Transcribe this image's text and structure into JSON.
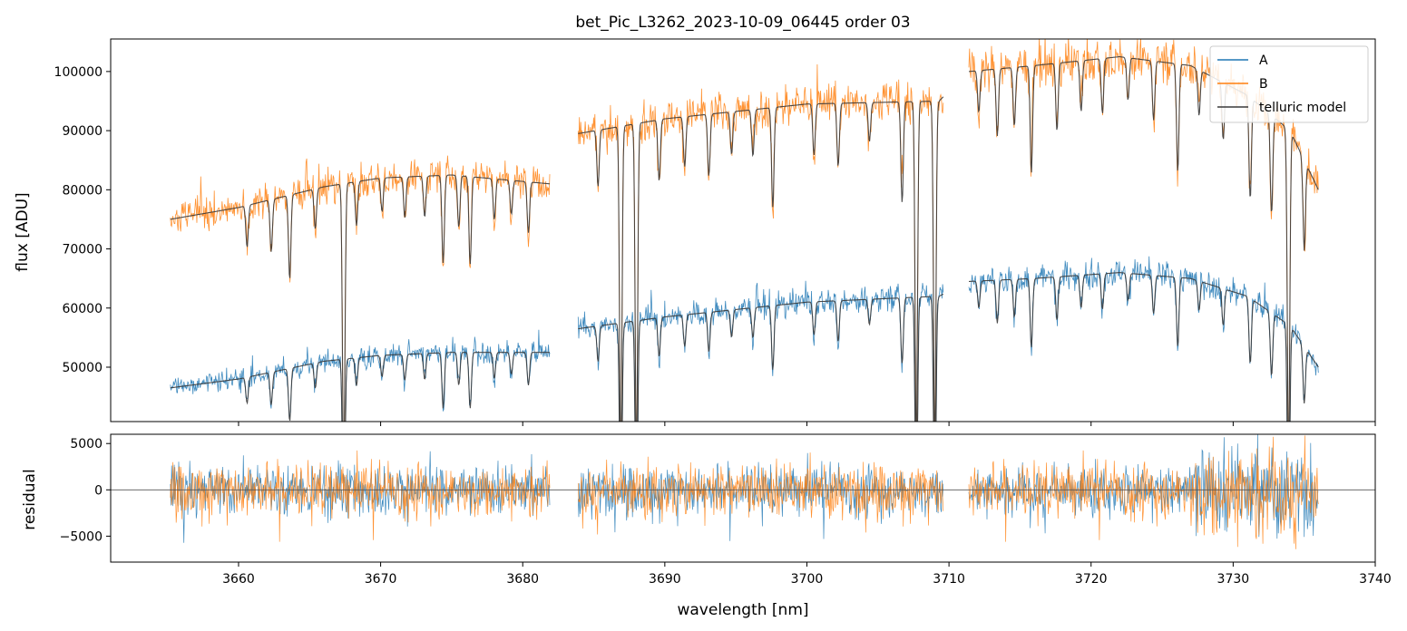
{
  "chart_data": [
    {
      "type": "line",
      "panel": "top",
      "title": "bet_Pic_L3262_2023-10-09_06445  order 03",
      "xlabel": "",
      "ylabel": "flux [ADU]",
      "xlim": [
        3651,
        3740
      ],
      "ylim": [
        40800,
        105500
      ],
      "yticks": [
        50000,
        60000,
        70000,
        80000,
        90000,
        100000
      ],
      "legend": {
        "placement": "top-right",
        "entries": [
          "A",
          "B",
          "telluric model"
        ]
      },
      "segments": [
        [
          3655.2,
          3681.9
        ],
        [
          3683.9,
          3709.6
        ],
        [
          3711.4,
          3736.0
        ]
      ],
      "series": [
        {
          "name": "A",
          "color": "#1f77b4",
          "continuum_x": [
            3655.2,
            3660,
            3666,
            3670,
            3675,
            3681.9,
            3683.9,
            3690,
            3700,
            3709.3,
            3711.4,
            3716,
            3722,
            3727,
            3731,
            3734,
            3736
          ],
          "continuum_y": [
            46500,
            48000,
            51000,
            52000,
            52500,
            52500,
            56500,
            58500,
            61000,
            62000,
            64500,
            65000,
            66000,
            65000,
            62000,
            57000,
            50000
          ]
        },
        {
          "name": "B",
          "color": "#ff7f0e",
          "continuum_x": [
            3655.2,
            3660,
            3666,
            3670,
            3675,
            3681.9,
            3683.9,
            3690,
            3700,
            3709.3,
            3711.4,
            3716,
            3722,
            3727,
            3731,
            3734,
            3736
          ],
          "continuum_y": [
            75000,
            77000,
            80500,
            82000,
            82500,
            81000,
            89500,
            92000,
            94500,
            95000,
            100000,
            101000,
            102500,
            101000,
            96000,
            90000,
            80000
          ]
        },
        {
          "name": "telluric model",
          "color": "#3a3a3a",
          "absorption_lines_nm": [
            3660.6,
            3662.3,
            3663.6,
            3665.4,
            3667.4,
            3668.3,
            3670.1,
            3671.7,
            3673.1,
            3674.4,
            3675.5,
            3676.3,
            3678.0,
            3679.2,
            3680.4,
            3685.3,
            3686.9,
            3688.0,
            3689.6,
            3691.4,
            3693.1,
            3694.7,
            3696.2,
            3697.6,
            3700.5,
            3702.2,
            3704.4,
            3706.7,
            3707.7,
            3709.0,
            3712.1,
            3713.4,
            3714.6,
            3715.8,
            3717.6,
            3719.3,
            3720.8,
            3722.6,
            3724.4,
            3726.1,
            3727.6,
            3729.3,
            3731.2,
            3732.7,
            3733.9,
            3735.0
          ]
        }
      ]
    },
    {
      "type": "line",
      "panel": "bottom",
      "xlabel": "wavelength [nm]",
      "ylabel": "residual",
      "xlim": [
        3651,
        3740
      ],
      "ylim": [
        -7800,
        6000
      ],
      "xticks": [
        3660,
        3670,
        3680,
        3690,
        3700,
        3710,
        3720,
        3730,
        3740
      ],
      "yticks": [
        -5000,
        0,
        5000
      ],
      "reference_line_y": 0,
      "series": [
        {
          "name": "A",
          "color": "#1f77b4",
          "typical_amplitude": 1400
        },
        {
          "name": "B",
          "color": "#ff7f0e",
          "typical_amplitude": 1500
        }
      ]
    }
  ]
}
